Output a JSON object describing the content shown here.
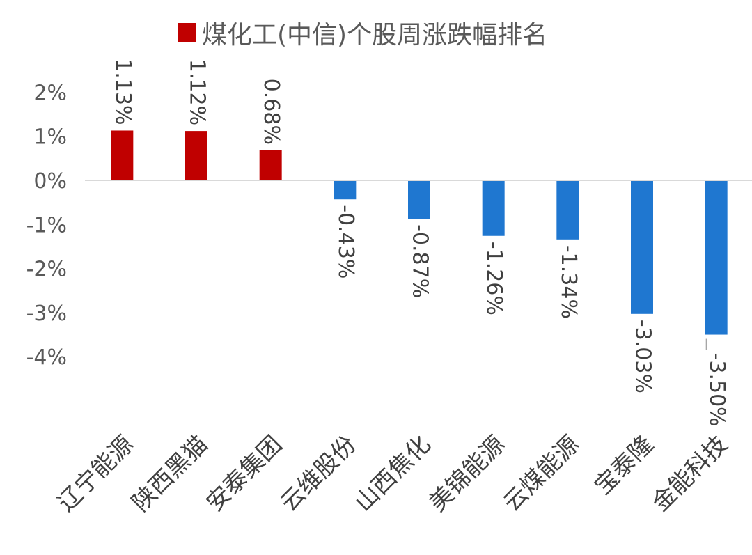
{
  "chart_data": {
    "type": "bar",
    "legend": {
      "label": "煤化工(中信)个股周涨跌幅排名",
      "position": "top",
      "color": "#C00000"
    },
    "categories": [
      "辽宁能源",
      "陕西黑猫",
      "安泰集团",
      "云维股份",
      "山西焦化",
      "美锦能源",
      "云煤能源",
      "宝泰隆",
      "金能科技"
    ],
    "values": [
      1.13,
      1.12,
      0.68,
      -0.43,
      -0.87,
      -1.26,
      -1.34,
      -3.03,
      -3.5
    ],
    "data_labels": [
      "1.13%",
      "1.12%",
      "0.68%",
      "-0.43%",
      "-0.87%",
      "-1.26%",
      "-1.34%",
      "-3.03%",
      "-3.50%"
    ],
    "colors": {
      "positive": "#C00000",
      "negative": "#1F77D0"
    },
    "yaxis": {
      "ticks": [
        2,
        1,
        0,
        -1,
        -2,
        -3,
        -4
      ],
      "tick_labels": [
        "2%",
        "1%",
        "0%",
        "-1%",
        "-2%",
        "-3%",
        "-4%"
      ],
      "ylim": [
        -4,
        2
      ]
    },
    "grid": false
  }
}
